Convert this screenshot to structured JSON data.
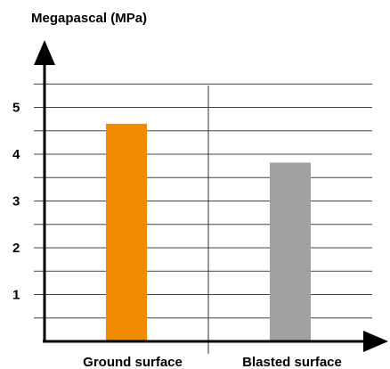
{
  "chart_data": {
    "type": "bar",
    "ylabel": "Megapascal (MPa)",
    "xlabel": "",
    "categories": [
      "Ground surface",
      "Blasted surface"
    ],
    "values": [
      4.65,
      3.82
    ],
    "colors": [
      "#f08a00",
      "#a0a09e"
    ],
    "ylim": [
      0,
      5.5
    ],
    "yticks": [
      "1",
      "2",
      "3",
      "4",
      "5"
    ],
    "grid": true,
    "grid_step": 0.5
  }
}
